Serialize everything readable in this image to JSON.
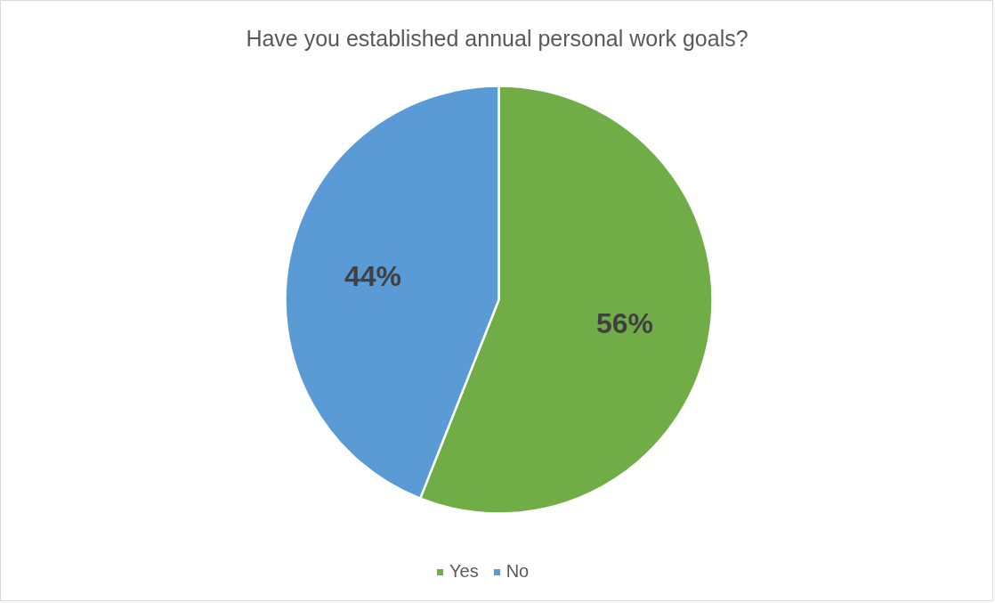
{
  "chart_data": {
    "type": "pie",
    "title": "Have you established annual personal work goals?",
    "categories": [
      "Yes",
      "No"
    ],
    "values": [
      56,
      44
    ],
    "colors": [
      "#70ad47",
      "#5b9bd5"
    ],
    "value_labels": [
      "56%",
      "44%"
    ],
    "legend": "bottom"
  }
}
